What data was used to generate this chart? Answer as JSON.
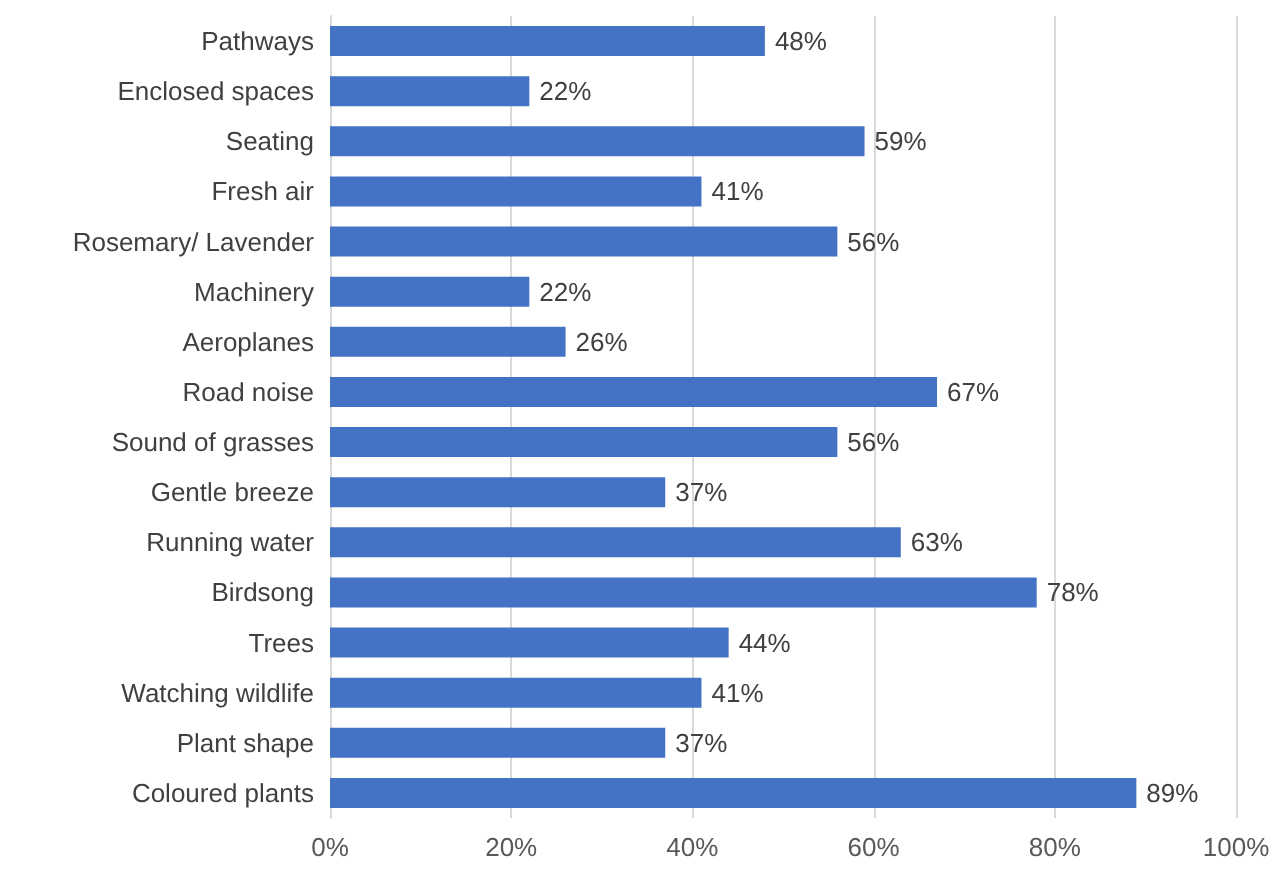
{
  "chart_data": {
    "type": "bar",
    "orientation": "horizontal",
    "categories": [
      "Pathways",
      "Enclosed spaces",
      "Seating",
      "Fresh air",
      "Rosemary/ Lavender",
      "Machinery",
      "Aeroplanes",
      "Road noise",
      "Sound of grasses",
      "Gentle breeze",
      "Running water",
      "Birdsong",
      "Trees",
      "Watching wildlife",
      "Plant shape",
      "Coloured plants"
    ],
    "values": [
      48,
      22,
      59,
      41,
      56,
      22,
      26,
      67,
      56,
      37,
      63,
      78,
      44,
      41,
      37,
      89
    ],
    "value_labels": [
      "48%",
      "22%",
      "59%",
      "41%",
      "56%",
      "22%",
      "26%",
      "67%",
      "56%",
      "37%",
      "63%",
      "78%",
      "44%",
      "41%",
      "37%",
      "89%"
    ],
    "color": "#4472c4",
    "xlim": [
      0,
      100
    ],
    "xticks": [
      {
        "value": 0,
        "label": "0%"
      },
      {
        "value": 20,
        "label": "20%"
      },
      {
        "value": 40,
        "label": "40%"
      },
      {
        "value": 60,
        "label": "60%"
      },
      {
        "value": 80,
        "label": "80%"
      },
      {
        "value": 100,
        "label": "100%"
      }
    ],
    "grid": "x"
  }
}
